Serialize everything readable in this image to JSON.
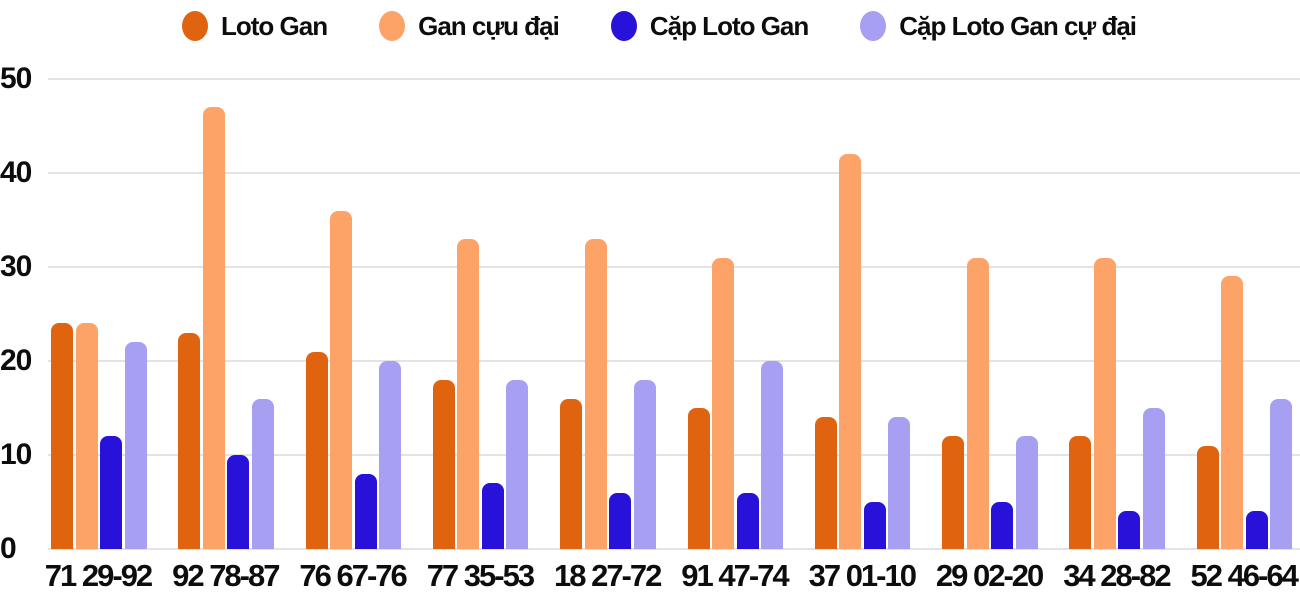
{
  "chart_data": {
    "type": "bar",
    "title": "",
    "xlabel": "",
    "ylabel": "",
    "categories": [
      "71 29-92",
      "92 78-87",
      "76 67-76",
      "77 35-53",
      "18 27-72",
      "91 47-74",
      "37 01-10",
      "29 02-20",
      "34 28-82",
      "52 46-64"
    ],
    "series": [
      {
        "name": "Loto Gan",
        "color": "#e0640f",
        "values": [
          24,
          23,
          21,
          18,
          16,
          15,
          14,
          12,
          12,
          11
        ]
      },
      {
        "name": "Gan cựu đại",
        "color": "#fda368",
        "values": [
          24,
          47,
          36,
          33,
          33,
          31,
          42,
          31,
          31,
          29
        ]
      },
      {
        "name": "Cặp Loto Gan",
        "color": "#2812da",
        "values": [
          12,
          10,
          8,
          7,
          6,
          6,
          5,
          5,
          4,
          4
        ]
      },
      {
        "name": "Cặp Loto Gan cự đại",
        "color": "#a7a0f2",
        "values": [
          22,
          16,
          20,
          18,
          18,
          20,
          14,
          12,
          15,
          16
        ]
      }
    ],
    "ylim": [
      0,
      50
    ],
    "yticks": [
      "0",
      "10",
      "20",
      "30",
      "40",
      "50"
    ],
    "grid": "horizontal",
    "legend_position": "top"
  },
  "colors": {
    "background": "#ffffff",
    "gridline": "#e3e3e3",
    "text": "#0d0d0d"
  }
}
